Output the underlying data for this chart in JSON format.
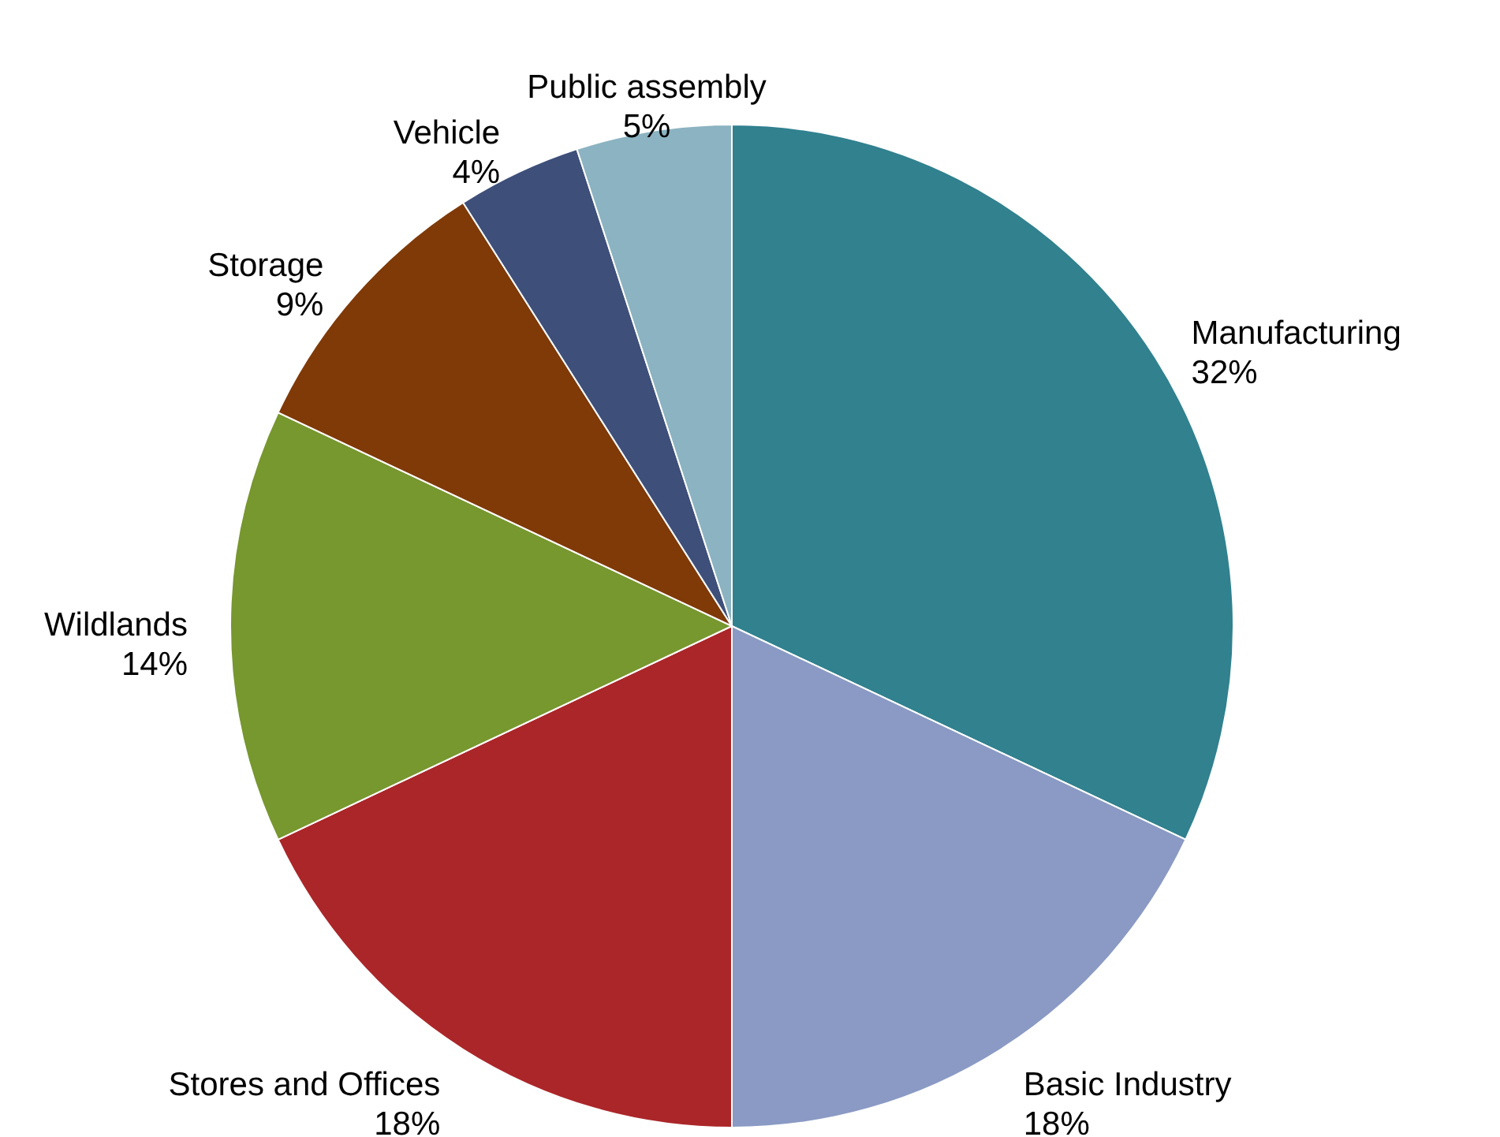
{
  "chart_data": {
    "type": "pie",
    "categories": [
      "Manufacturing",
      "Basic Industry",
      "Stores and Offices",
      "Wildlands",
      "Storage",
      "Vehicle",
      "Public assembly"
    ],
    "values": [
      32,
      18,
      18,
      14,
      9,
      4,
      5
    ],
    "value_labels": [
      "32%",
      "18%",
      "18%",
      "14%",
      "9%",
      "4%",
      "5%"
    ],
    "colors": [
      "#31818f",
      "#8a9ac4",
      "#ab2629",
      "#77972f",
      "#7f3a08",
      "#3e4f7a",
      "#8bb3c1"
    ]
  }
}
